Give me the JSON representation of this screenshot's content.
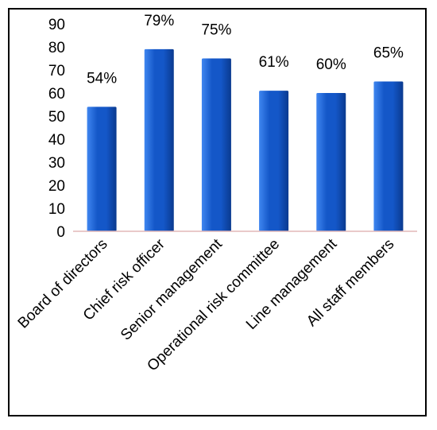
{
  "chart_data": {
    "type": "bar",
    "title": "",
    "xlabel": "",
    "ylabel": "",
    "ylim": [
      0,
      90
    ],
    "yticks": [
      "0",
      "10",
      "20",
      "30",
      "40",
      "50",
      "60",
      "70",
      "80",
      "90"
    ],
    "grid": false,
    "legend": "none",
    "categories": [
      "Board of directors",
      "Chief risk officer",
      "Senior management",
      "Operational risk committee",
      "Line management",
      "All staff members"
    ],
    "values": [
      54,
      79,
      75,
      61,
      60,
      65
    ],
    "data_labels": [
      "54%",
      "79%",
      "75%",
      "61%",
      "60%",
      "65%"
    ],
    "colors": {
      "bar_light": "#3f86f0",
      "bar_mid": "#1457c8",
      "bar_dark": "#0a3a8f",
      "baseline": "#e2b8b8",
      "axis": "#000000",
      "border": "#000000"
    }
  }
}
